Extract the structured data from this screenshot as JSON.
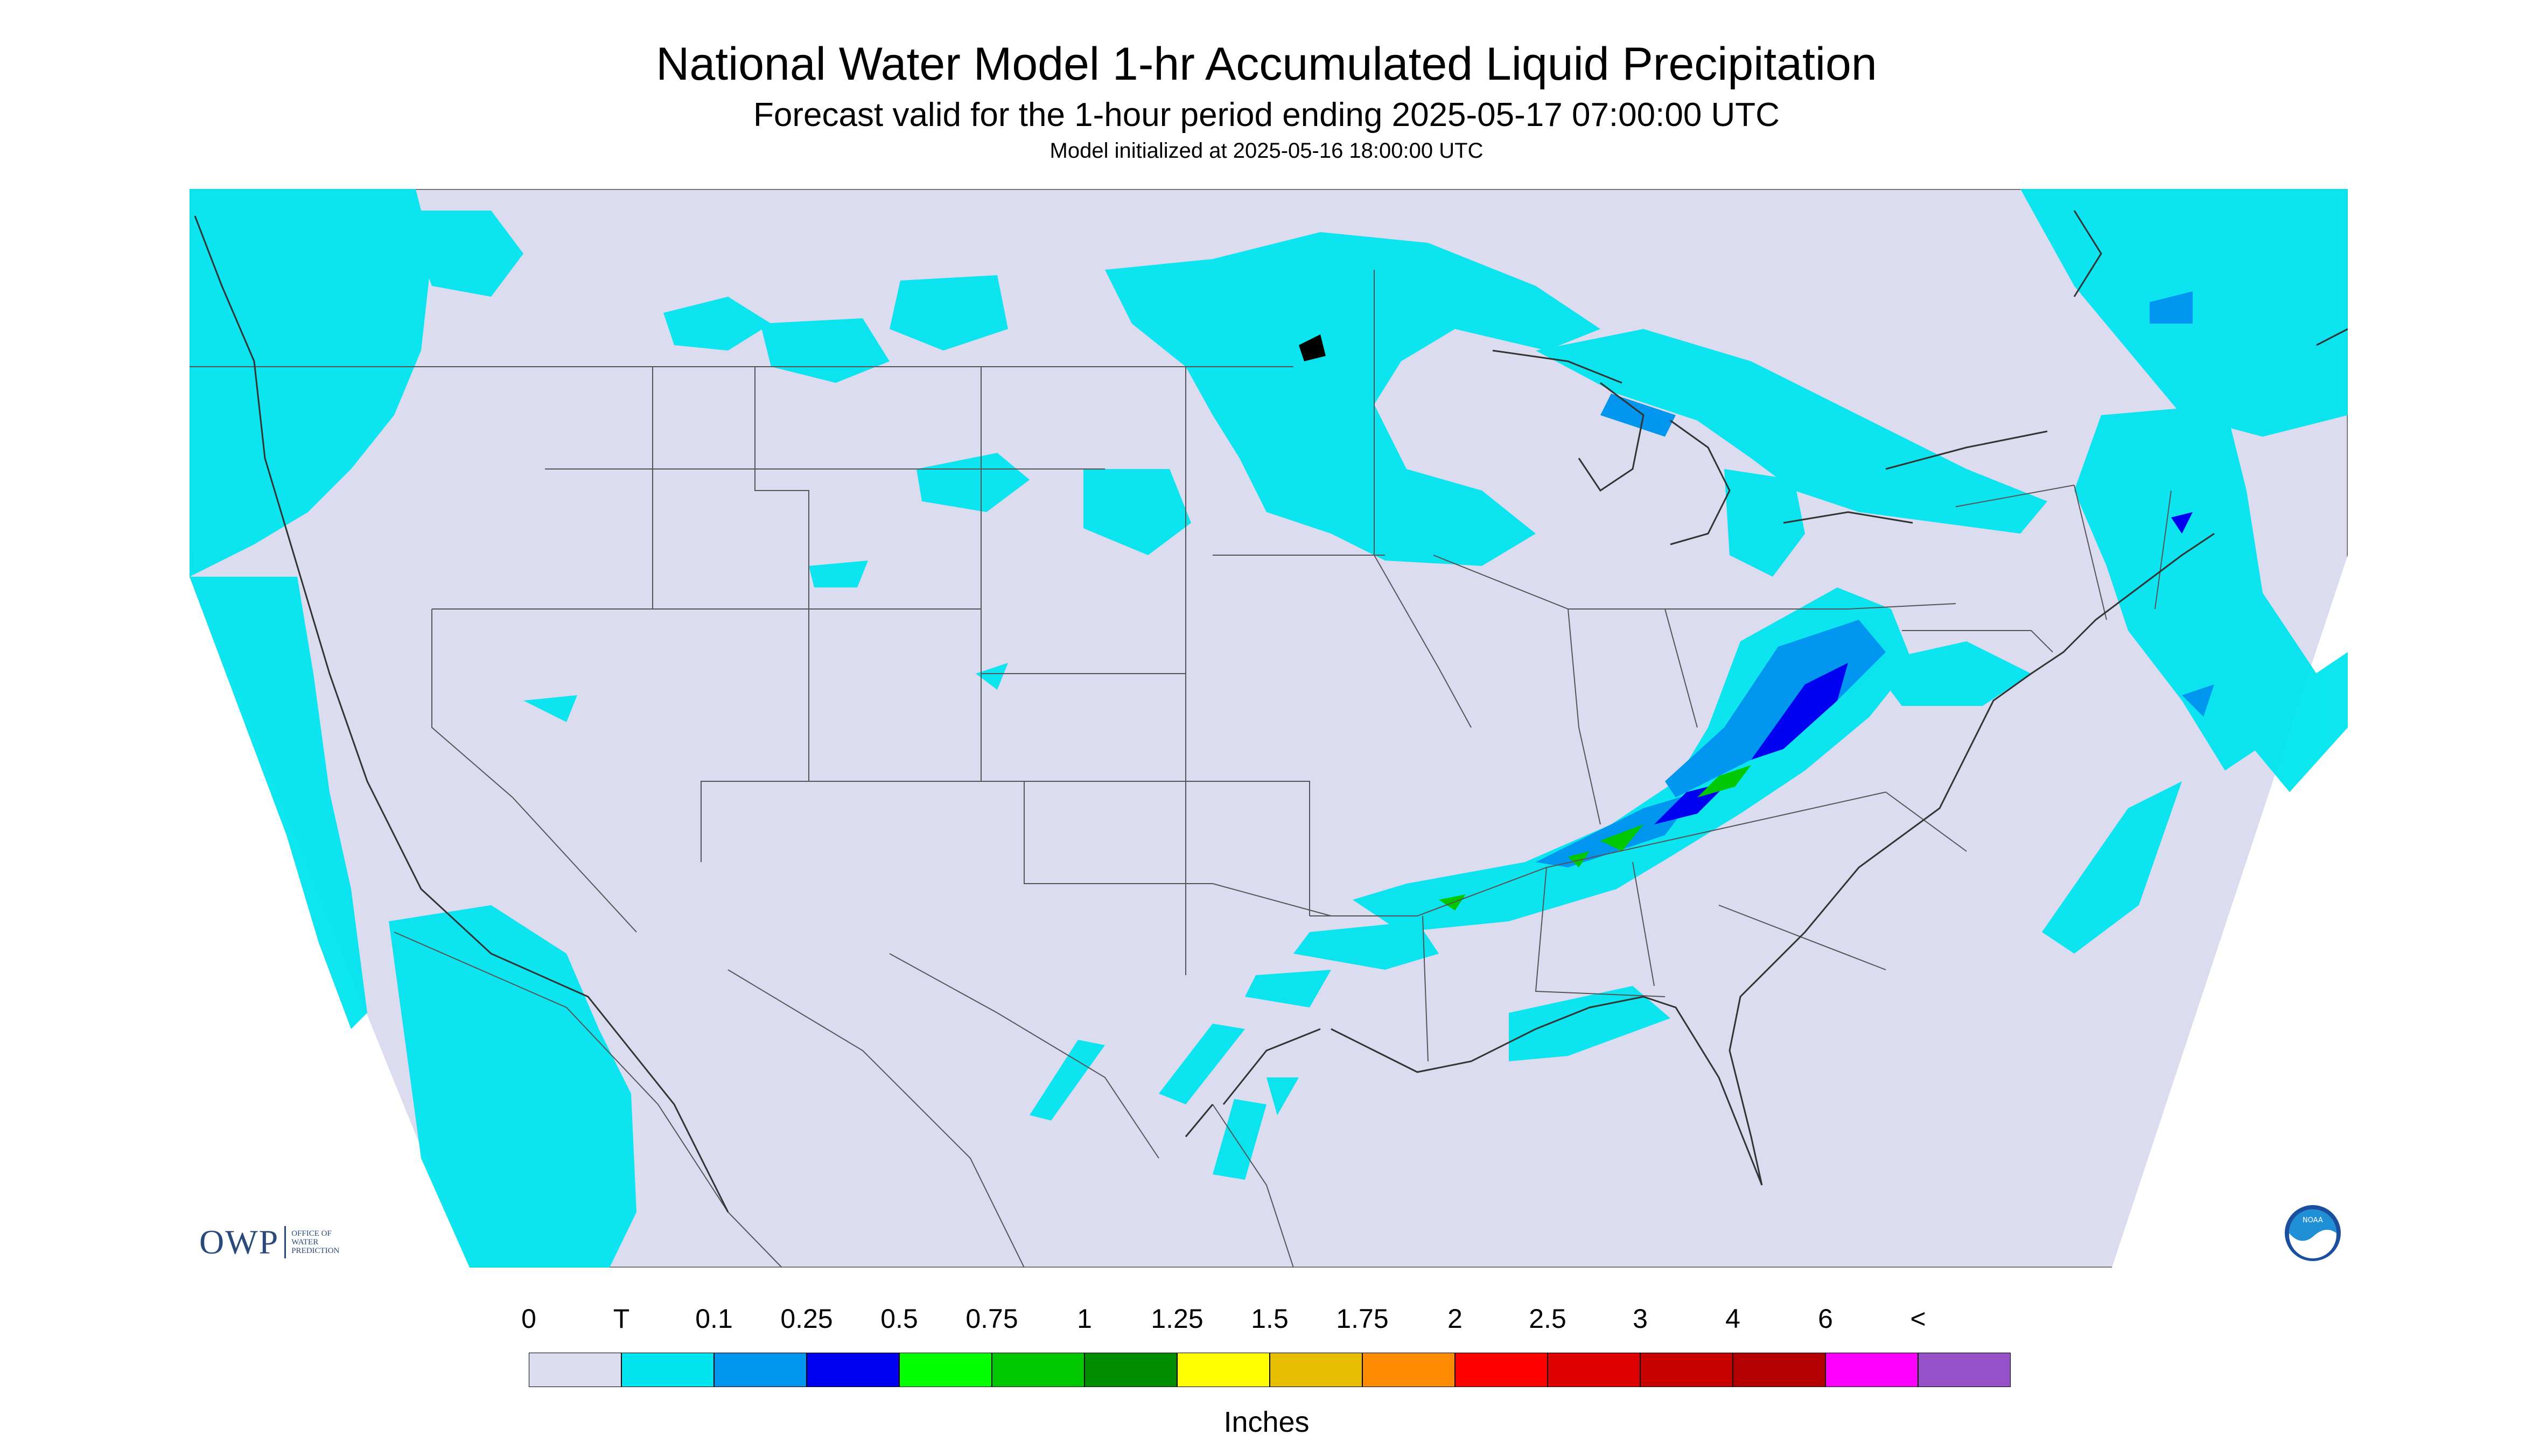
{
  "header": {
    "title": "National Water Model 1-hr Accumulated Liquid Precipitation",
    "subtitle": "Forecast valid for the 1-hour period ending 2025-05-17 07:00:00 UTC",
    "init": "Model initialized at 2025-05-16 18:00:00 UTC"
  },
  "legend": {
    "tick_labels": [
      "0",
      "T",
      "0.1",
      "0.25",
      "0.5",
      "0.75",
      "1",
      "1.25",
      "1.5",
      "1.75",
      "2",
      "2.5",
      "3",
      "4",
      "6",
      "<"
    ],
    "colors": [
      "#dcdcf0",
      "#00e5ee",
      "#0096f0",
      "#0000f0",
      "#00ff00",
      "#00c800",
      "#008c00",
      "#ffff00",
      "#e6c000",
      "#ff8c00",
      "#ff0000",
      "#dc0000",
      "#c80000",
      "#b40000",
      "#ff00ff",
      "#9650c8"
    ],
    "units": "Inches"
  },
  "logos": {
    "owp_letters": "OWP",
    "owp_text": [
      "OFFICE OF",
      "WATER",
      "PREDICTION"
    ],
    "noaa_text": "NOAA"
  },
  "map": {
    "background": "#dcdcf0",
    "precip_light": "#00e5ee",
    "precip_medium": "#0096f0",
    "precip_heavy": "#0000f0",
    "precip_green": "#00c800"
  }
}
